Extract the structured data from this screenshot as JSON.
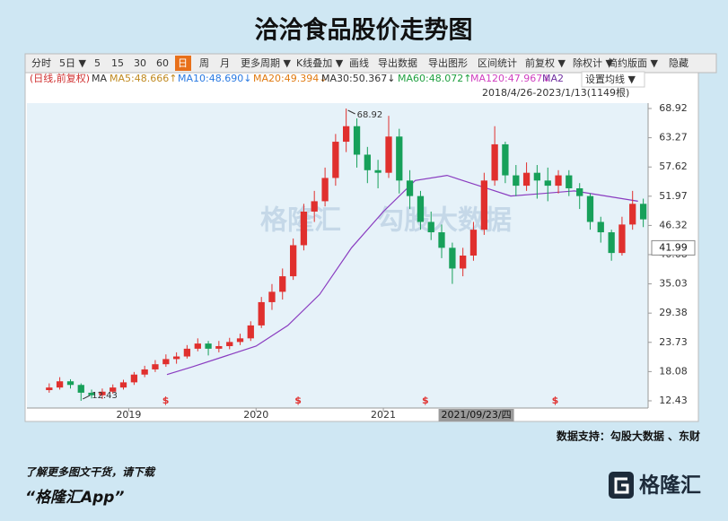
{
  "chart_data": {
    "type": "candlestick",
    "title": "洽洽食品股价走势图",
    "toolbar": [
      "分时",
      "5日 ▼",
      "5",
      "15",
      "30",
      "60",
      "日",
      "周",
      "月",
      "更多周期 ▼",
      "K线叠加 ▼",
      "画线",
      "导出数据",
      "导出图形",
      "区间统计",
      "前复权 ▼",
      "除权计 ▼",
      "简约版面 ▼",
      "隐藏"
    ],
    "toolbar_active": "日",
    "legend_prefix": "(日线,前复权)",
    "legend_ma": "MA",
    "ma_legend": [
      {
        "label": "MA5:48.666↑",
        "color": "#c08a20"
      },
      {
        "label": "MA10:48.690↓",
        "color": "#2a7ae2"
      },
      {
        "label": "MA20:49.394↓",
        "color": "#e07a10"
      },
      {
        "label": "MA30:50.367↓",
        "color": "#333333"
      },
      {
        "label": "MA60:48.072↑",
        "color": "#20a040"
      },
      {
        "label": "MA120:47.967↓",
        "color": "#d040c0"
      },
      {
        "label": "MA2",
        "color": "#7030a0"
      }
    ],
    "ma_settings": "设置均线 ▼",
    "date_range": "2018/4/26-2023/1/13(1149根)",
    "up_color": "#e0302e",
    "down_color": "#17a05a",
    "candles": {
      "x": [
        2018.375,
        2018.458,
        2018.542,
        2018.625,
        2018.708,
        2018.792,
        2018.875,
        2018.958,
        2019.042,
        2019.125,
        2019.208,
        2019.292,
        2019.375,
        2019.458,
        2019.542,
        2019.625,
        2019.708,
        2019.792,
        2019.875,
        2019.958,
        2020.042,
        2020.125,
        2020.208,
        2020.292,
        2020.375,
        2020.458,
        2020.542,
        2020.625,
        2020.708,
        2020.792,
        2020.875,
        2020.958,
        2021.042,
        2021.125,
        2021.208,
        2021.292,
        2021.375,
        2021.458,
        2021.542,
        2021.625,
        2021.708,
        2021.792,
        2021.875,
        2021.958,
        2022.042,
        2022.125,
        2022.208,
        2022.292,
        2022.375,
        2022.458,
        2022.542,
        2022.625,
        2022.708,
        2022.792,
        2022.875,
        2022.958,
        2023.042
      ],
      "open": [
        14.5,
        15.0,
        16.2,
        15.5,
        14.0,
        13.5,
        14.2,
        15.0,
        16.0,
        17.5,
        18.5,
        19.5,
        20.5,
        21.0,
        22.5,
        23.5,
        22.5,
        23.0,
        23.8,
        24.5,
        27.0,
        31.5,
        33.5,
        36.5,
        42.5,
        49.0,
        51.0,
        55.5,
        62.5,
        65.5,
        60.0,
        57.0,
        56.5,
        63.5,
        55.0,
        52.0,
        47.0,
        45.0,
        42.0,
        38.0,
        40.5,
        45.5,
        55.0,
        62.0,
        56.0,
        54.0,
        56.5,
        55.0,
        54.0,
        56.0,
        53.5,
        52.0,
        47.0,
        45.0,
        41.0,
        46.5,
        50.5
      ],
      "high": [
        15.8,
        17.0,
        16.6,
        15.8,
        14.6,
        14.8,
        15.6,
        16.5,
        18.0,
        19.2,
        20.3,
        21.4,
        21.8,
        23.2,
        24.5,
        24.0,
        24.0,
        24.6,
        25.4,
        27.8,
        32.5,
        35.0,
        38.0,
        43.8,
        50.5,
        53.0,
        57.5,
        64.0,
        68.92,
        67.0,
        61.5,
        59.0,
        67.5,
        65.0,
        57.0,
        53.0,
        49.0,
        46.5,
        43.0,
        42.0,
        47.0,
        56.5,
        65.5,
        62.5,
        58.0,
        58.5,
        58.0,
        57.5,
        57.0,
        57.0,
        54.5,
        52.5,
        48.0,
        45.5,
        48.0,
        53.0,
        51.5
      ],
      "low": [
        14.0,
        14.6,
        14.8,
        12.43,
        12.9,
        12.8,
        13.8,
        14.6,
        15.5,
        17.0,
        18.0,
        19.0,
        19.6,
        20.6,
        22.0,
        21.2,
        21.8,
        22.4,
        23.2,
        24.0,
        26.5,
        30.0,
        32.0,
        35.8,
        41.5,
        47.0,
        50.0,
        54.0,
        60.5,
        57.5,
        54.5,
        53.5,
        55.5,
        52.5,
        49.5,
        45.5,
        43.5,
        40.0,
        35.03,
        36.5,
        39.5,
        44.5,
        54.0,
        54.5,
        52.0,
        53.0,
        51.5,
        51.0,
        52.5,
        52.0,
        49.5,
        45.5,
        43.0,
        39.5,
        40.5,
        45.5,
        46.0
      ],
      "close": [
        15.0,
        16.2,
        15.5,
        14.0,
        13.5,
        14.2,
        15.0,
        16.0,
        17.5,
        18.5,
        19.5,
        20.5,
        21.0,
        22.5,
        23.5,
        22.5,
        23.0,
        23.8,
        24.5,
        27.0,
        31.5,
        33.5,
        36.5,
        42.5,
        49.0,
        51.0,
        55.5,
        62.5,
        65.5,
        60.0,
        57.0,
        56.5,
        63.5,
        55.0,
        52.0,
        47.0,
        45.0,
        42.0,
        38.0,
        40.5,
        45.5,
        55.0,
        62.0,
        56.0,
        54.0,
        56.5,
        55.0,
        54.0,
        56.0,
        53.5,
        52.0,
        47.0,
        45.0,
        41.0,
        46.5,
        50.5,
        47.5
      ]
    },
    "trend_line": {
      "color": "#8a3cc0",
      "x": [
        2019.3,
        2019.5,
        2019.75,
        2020.0,
        2020.25,
        2020.5,
        2020.75,
        2021.0,
        2021.25,
        2021.5,
        2021.75,
        2022.0,
        2022.25,
        2022.5,
        2022.75,
        2023.0
      ],
      "values": [
        17.5,
        19,
        21,
        23,
        27,
        33,
        42,
        49,
        55,
        56,
        54,
        52,
        52.5,
        53,
        52,
        51
      ]
    },
    "annotations": [
      {
        "x": 2020.708,
        "value": 68.92
      },
      {
        "x": 2018.625,
        "value": 12.43
      }
    ],
    "price_label": 41.99,
    "event_markers": {
      "label": "$",
      "color": "#e0302e",
      "x": [
        2019.29,
        2020.33,
        2021.33,
        2022.35
      ]
    },
    "crosshair": {
      "x": 2021.73,
      "label": "2021/09/23/四"
    },
    "xlim": [
      2018.2,
      2023.08
    ],
    "xticks": [
      2019,
      2020,
      2021
    ],
    "ylim": [
      11.04,
      69.96
    ],
    "yticks": [
      68.92,
      63.27,
      57.62,
      51.97,
      46.32,
      40.68,
      35.03,
      29.38,
      23.73,
      18.08,
      12.43
    ],
    "watermark": [
      "格隆汇",
      "勾股大数据"
    ],
    "source": "数据支持：勾股大数据 、东财",
    "footer_line1": "了解更多图文干货，请下载",
    "footer_line2": "“格隆汇App”",
    "logo": "格隆汇"
  }
}
